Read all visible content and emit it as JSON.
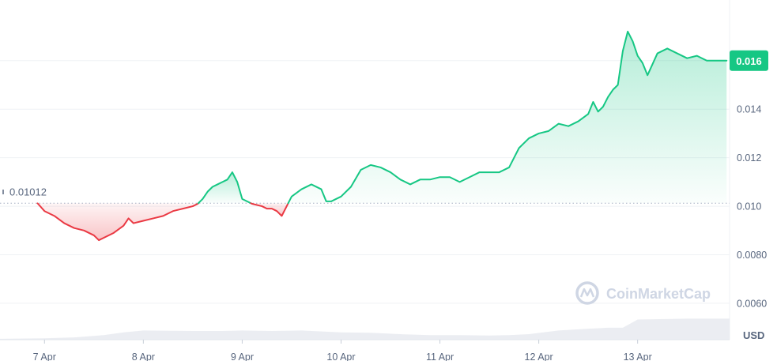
{
  "chart_data": {
    "type": "area",
    "title": "",
    "unit_label": "USD",
    "reference_value": 0.010125,
    "reference_label": "0.01012",
    "current_value_label": "0.016",
    "watermark": "CoinMarketCap",
    "colors": {
      "up": "#16c784",
      "down": "#ea3943",
      "up_fill": "#16c784",
      "down_fill": "#ea3943",
      "volume": "#e4e7ee",
      "grid": "#eff2f5",
      "text": "#58667e"
    },
    "ylim": [
      0.0045,
      0.0185
    ],
    "y_ticks": [
      {
        "value": 0.016,
        "label": "0.016"
      },
      {
        "value": 0.014,
        "label": "0.014"
      },
      {
        "value": 0.012,
        "label": "0.012"
      },
      {
        "value": 0.01,
        "label": "0.010"
      },
      {
        "value": 0.008,
        "label": "0.0080"
      },
      {
        "value": 0.006,
        "label": "0.0060"
      }
    ],
    "xlim": [
      6.55,
      13.93
    ],
    "x_ticks": [
      {
        "value": 7,
        "label": "7 Apr"
      },
      {
        "value": 8,
        "label": "8 Apr"
      },
      {
        "value": 9,
        "label": "9 Apr"
      },
      {
        "value": 10,
        "label": "10 Apr"
      },
      {
        "value": 11,
        "label": "11 Apr"
      },
      {
        "value": 12,
        "label": "12 Apr"
      },
      {
        "value": 13,
        "label": "13 Apr"
      }
    ],
    "price_series": {
      "name": "Price",
      "x": [
        6.93,
        7.0,
        7.1,
        7.2,
        7.3,
        7.4,
        7.5,
        7.55,
        7.6,
        7.7,
        7.8,
        7.85,
        7.9,
        8.0,
        8.1,
        8.2,
        8.3,
        8.4,
        8.5,
        8.55,
        8.6,
        8.65,
        8.7,
        8.75,
        8.8,
        8.85,
        8.9,
        8.95,
        9.0,
        9.1,
        9.2,
        9.25,
        9.3,
        9.35,
        9.4,
        9.45,
        9.5,
        9.6,
        9.7,
        9.8,
        9.85,
        9.9,
        10.0,
        10.1,
        10.2,
        10.3,
        10.4,
        10.5,
        10.6,
        10.7,
        10.8,
        10.9,
        11.0,
        11.1,
        11.2,
        11.3,
        11.4,
        11.5,
        11.6,
        11.7,
        11.8,
        11.9,
        12.0,
        12.1,
        12.2,
        12.3,
        12.4,
        12.5,
        12.55,
        12.6,
        12.65,
        12.7,
        12.75,
        12.8,
        12.85,
        12.9,
        12.95,
        13.0,
        13.05,
        13.1,
        13.2,
        13.3,
        13.4,
        13.5,
        13.6,
        13.7,
        13.8,
        13.9
      ],
      "y": [
        0.01012,
        0.0098,
        0.0096,
        0.0093,
        0.0091,
        0.009,
        0.0088,
        0.0086,
        0.0087,
        0.0089,
        0.0092,
        0.0095,
        0.0093,
        0.0094,
        0.0095,
        0.0096,
        0.0098,
        0.0099,
        0.01,
        0.0101,
        0.0103,
        0.0106,
        0.0108,
        0.0109,
        0.011,
        0.0111,
        0.0114,
        0.011,
        0.0103,
        0.0101,
        0.01,
        0.0099,
        0.0099,
        0.0098,
        0.0096,
        0.01,
        0.0104,
        0.0107,
        0.0109,
        0.0107,
        0.0102,
        0.0102,
        0.0104,
        0.0108,
        0.0115,
        0.0117,
        0.0116,
        0.0114,
        0.0111,
        0.0109,
        0.0111,
        0.0111,
        0.0112,
        0.0112,
        0.011,
        0.0112,
        0.0114,
        0.0114,
        0.0114,
        0.0116,
        0.0124,
        0.0128,
        0.013,
        0.0131,
        0.0134,
        0.0133,
        0.0135,
        0.0138,
        0.0143,
        0.0139,
        0.0141,
        0.0145,
        0.0148,
        0.015,
        0.0164,
        0.0172,
        0.0168,
        0.0162,
        0.0159,
        0.0154,
        0.0163,
        0.0165,
        0.0163,
        0.0161,
        0.0162,
        0.016,
        0.016,
        0.016
      ]
    },
    "volume_series": {
      "name": "Volume",
      "x": [
        6.55,
        7.0,
        7.3,
        7.6,
        7.8,
        8.0,
        8.5,
        8.8,
        9.0,
        9.3,
        9.6,
        10.0,
        10.3,
        10.6,
        10.9,
        11.2,
        11.5,
        11.7,
        11.9,
        12.2,
        12.5,
        12.7,
        12.85,
        13.0,
        13.5,
        13.93
      ],
      "y": [
        0.2,
        0.3,
        0.5,
        1.0,
        1.6,
        2.0,
        1.9,
        1.9,
        2.0,
        1.9,
        2.0,
        1.6,
        1.5,
        1.2,
        1.0,
        1.0,
        0.9,
        1.0,
        1.2,
        2.0,
        2.4,
        2.6,
        2.6,
        4.4,
        4.6,
        4.6
      ],
      "ymax": 10
    }
  }
}
